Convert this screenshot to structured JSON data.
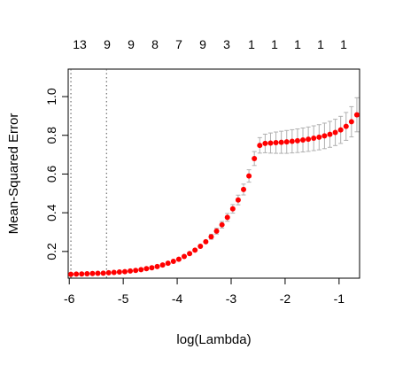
{
  "chart_data": {
    "type": "scatter",
    "title": "",
    "xlabel": "log(Lambda)",
    "ylabel": "Mean-Squared Error",
    "xlim": [
      -6.02,
      -0.62
    ],
    "ylim": [
      0.062,
      1.142
    ],
    "x_ticks": [
      -6,
      -5,
      -4,
      -3,
      -2,
      -1
    ],
    "y_ticks": [
      0.2,
      0.4,
      0.6,
      0.8,
      1.0
    ],
    "x_tick_labels": [
      "-6",
      "-5",
      "-4",
      "-3",
      "-2",
      "-1"
    ],
    "y_tick_labels": [
      "0.2",
      "0.4",
      "0.6",
      "0.8",
      "1.0"
    ],
    "top_axis": {
      "x": [
        -6,
        -5.33,
        -4.67,
        -4,
        -3.33,
        -2.67,
        -2,
        -1.33,
        -0.67,
        -3.33,
        -5.97
      ],
      "labels": [
        "13",
        "9",
        "9",
        "8",
        "7",
        "9",
        "3",
        "1",
        "1",
        "1",
        "1",
        "1"
      ],
      "positions": [
        -5.97,
        -5.32,
        -4.64,
        -3.98,
        -3.31,
        -2.66,
        -2.0,
        -1.33,
        -0.66,
        -3.05,
        -2.33,
        -1.62
      ]
    },
    "vertical_lines": [
      -5.97,
      -5.31
    ],
    "grid": false,
    "legend": "none",
    "point_color": "#ff0000",
    "errorbar_color": "#b0b0b0",
    "series": [
      {
        "x": [
          -5.97,
          -5.87,
          -5.77,
          -5.67,
          -5.57,
          -5.47,
          -5.37,
          -5.27,
          -5.17,
          -5.07,
          -4.97,
          -4.87,
          -4.77,
          -4.67,
          -4.57,
          -4.47,
          -4.37,
          -4.27,
          -4.17,
          -4.07,
          -3.97,
          -3.87,
          -3.77,
          -3.67,
          -3.57,
          -3.47,
          -3.37,
          -3.27,
          -3.17,
          -3.07,
          -2.97,
          -2.87,
          -2.77,
          -2.67,
          -2.57,
          -2.47,
          -2.37,
          -2.27,
          -2.17,
          -2.07,
          -1.97,
          -1.87,
          -1.77,
          -1.67,
          -1.57,
          -1.47,
          -1.37,
          -1.27,
          -1.17,
          -1.07,
          -0.97,
          -0.87,
          -0.77,
          -0.67
        ],
        "y": [
          0.082,
          0.083,
          0.084,
          0.085,
          0.086,
          0.087,
          0.088,
          0.09,
          0.092,
          0.094,
          0.096,
          0.099,
          0.102,
          0.106,
          0.111,
          0.116,
          0.122,
          0.13,
          0.139,
          0.149,
          0.16,
          0.174,
          0.189,
          0.207,
          0.227,
          0.25,
          0.276,
          0.305,
          0.338,
          0.376,
          0.42,
          0.466,
          0.52,
          0.59,
          0.68,
          0.748,
          0.758,
          0.76,
          0.762,
          0.764,
          0.766,
          0.769,
          0.772,
          0.776,
          0.78,
          0.785,
          0.79,
          0.797,
          0.805,
          0.815,
          0.828,
          0.846,
          0.87,
          0.906
        ],
        "err": [
          0.006,
          0.006,
          0.006,
          0.006,
          0.006,
          0.006,
          0.006,
          0.006,
          0.006,
          0.006,
          0.006,
          0.006,
          0.006,
          0.006,
          0.006,
          0.006,
          0.007,
          0.007,
          0.007,
          0.007,
          0.008,
          0.008,
          0.009,
          0.01,
          0.011,
          0.012,
          0.013,
          0.015,
          0.017,
          0.02,
          0.022,
          0.025,
          0.028,
          0.032,
          0.036,
          0.04,
          0.048,
          0.052,
          0.055,
          0.057,
          0.059,
          0.06,
          0.061,
          0.062,
          0.063,
          0.064,
          0.065,
          0.066,
          0.067,
          0.068,
          0.07,
          0.072,
          0.078,
          0.088
        ]
      }
    ]
  }
}
